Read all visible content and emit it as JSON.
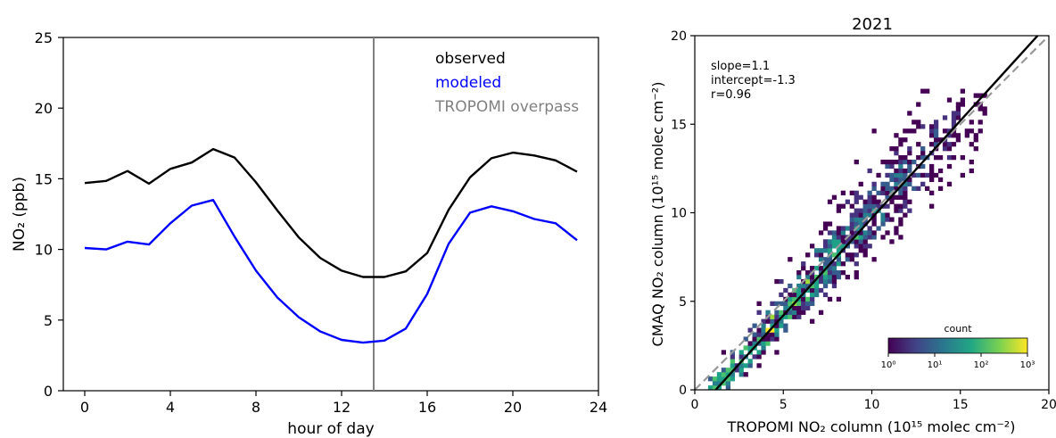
{
  "chart_data": [
    {
      "type": "line",
      "xlabel": "hour of day",
      "ylabel": "NO₂ (ppb)",
      "xlim": [
        -1.0,
        24.0
      ],
      "ylim": [
        0,
        25
      ],
      "xticks": [
        0,
        4,
        8,
        12,
        16,
        20,
        24
      ],
      "yticks": [
        0,
        5,
        10,
        15,
        20,
        25
      ],
      "x": [
        0,
        1,
        2,
        3,
        4,
        5,
        6,
        7,
        8,
        9,
        10,
        11,
        12,
        13,
        14,
        15,
        16,
        17,
        18,
        19,
        20,
        21,
        22,
        23
      ],
      "series": [
        {
          "name": "observed",
          "color": "#000000",
          "values": [
            14.7,
            14.85,
            15.55,
            14.65,
            15.7,
            16.15,
            17.1,
            16.5,
            14.75,
            12.75,
            10.85,
            9.4,
            8.5,
            8.05,
            8.05,
            8.45,
            9.75,
            12.8,
            15.1,
            16.45,
            16.85,
            16.65,
            16.3,
            15.5
          ]
        },
        {
          "name": "modeled",
          "color": "#0000ff",
          "values": [
            10.1,
            10.0,
            10.55,
            10.35,
            11.85,
            13.1,
            13.5,
            10.9,
            8.5,
            6.6,
            5.2,
            4.2,
            3.6,
            3.4,
            3.55,
            4.4,
            6.85,
            10.4,
            12.6,
            13.05,
            12.7,
            12.15,
            11.85,
            10.65
          ]
        }
      ],
      "vline": {
        "x": 13.5,
        "label": "TROPOMI overpass",
        "color": "#808080"
      },
      "legend_position": "top-right"
    },
    {
      "type": "heatmap",
      "title": "2021",
      "xlabel": "TROPOMI NO₂ column (10¹⁵ molec cm⁻²)",
      "ylabel": "CMAQ NO₂ column (10¹⁵ molec cm⁻²)",
      "xlim": [
        0,
        20
      ],
      "ylim": [
        0,
        20
      ],
      "xticks": [
        0,
        5,
        10,
        15,
        20
      ],
      "yticks": [
        0,
        5,
        10,
        15,
        20
      ],
      "annotations": [
        "slope=1.1",
        "intercept=-1.3",
        "r=0.96"
      ],
      "fit_line": {
        "slope": 1.1,
        "intercept": -1.3,
        "color": "#000000"
      },
      "one_to_one_line": {
        "color": "#999999",
        "style": "dashed"
      },
      "colorbar": {
        "label": "count",
        "scale": "log",
        "ticks": [
          "10⁰",
          "10¹",
          "10²",
          "10³"
        ],
        "range": [
          1,
          1000
        ]
      }
    }
  ]
}
